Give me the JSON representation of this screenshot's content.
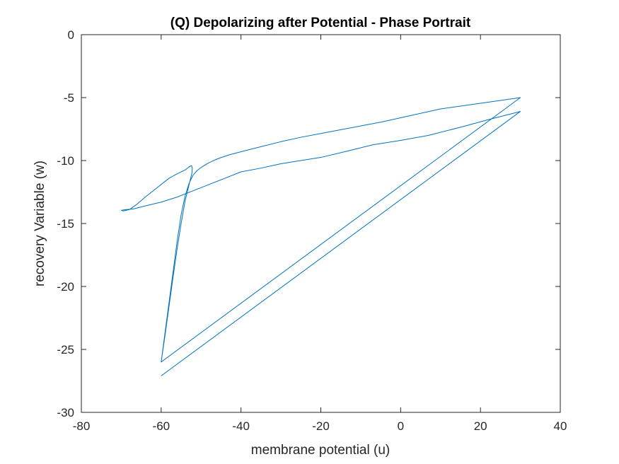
{
  "chart_data": {
    "type": "line",
    "title": "(Q) Depolarizing after Potential - Phase Portrait",
    "xlabel": "membrane potential (u)",
    "ylabel": "recovery Variable (w)",
    "xlim": [
      -80,
      40
    ],
    "ylim": [
      -30,
      0
    ],
    "xticks": [
      "-80",
      "-60",
      "-40",
      "-20",
      "0",
      "20",
      "40"
    ],
    "yticks": [
      "-30",
      "-25",
      "-20",
      "-15",
      "-10",
      "-5",
      "0"
    ],
    "grid": false,
    "legend": "none",
    "line_color": "#0072BD",
    "axes_color": "#262626",
    "series": [
      {
        "x": [
          -60,
          -59,
          -58,
          -57,
          -56,
          -55,
          -54,
          -53,
          -52,
          -51,
          -50,
          -49,
          -48,
          -47,
          -46,
          -45,
          -43,
          -40,
          -35,
          -30,
          -25,
          -20,
          -15,
          -10,
          -5,
          0,
          5,
          10,
          20,
          30,
          -60,
          -59,
          -58,
          -57,
          -56,
          -55,
          -54,
          -53,
          -52.3,
          -52.2,
          -52.4,
          -53,
          -54,
          -56,
          -58,
          -60,
          -62,
          -64,
          -66,
          -68,
          -69.5,
          -70,
          -69,
          -67,
          -64,
          -60,
          -56,
          -52,
          -48,
          -44,
          -40,
          -35,
          -30,
          -27,
          -20,
          -14,
          -7,
          0,
          7,
          15,
          22,
          30,
          -60
        ],
        "y": [
          -26.0,
          -23.6,
          -21.2,
          -18.8,
          -16.4,
          -14.3,
          -12.8,
          -11.8,
          -11.15,
          -10.8,
          -10.55,
          -10.35,
          -10.17,
          -10.02,
          -9.88,
          -9.76,
          -9.55,
          -9.3,
          -8.9,
          -8.5,
          -8.15,
          -7.85,
          -7.55,
          -7.25,
          -6.95,
          -6.6,
          -6.25,
          -5.9,
          -5.45,
          -5.0,
          -26.0,
          -23.8,
          -21.5,
          -19.2,
          -17.0,
          -15.0,
          -13.2,
          -11.9,
          -11.0,
          -10.6,
          -10.4,
          -10.5,
          -10.75,
          -11.05,
          -11.4,
          -11.9,
          -12.4,
          -12.9,
          -13.45,
          -13.9,
          -14.0,
          -13.95,
          -13.9,
          -13.85,
          -13.6,
          -13.3,
          -12.9,
          -12.4,
          -11.9,
          -11.4,
          -10.9,
          -10.6,
          -10.25,
          -10.1,
          -9.75,
          -9.3,
          -8.75,
          -8.4,
          -8.0,
          -7.35,
          -6.75,
          -6.1,
          -27.1
        ]
      }
    ]
  }
}
